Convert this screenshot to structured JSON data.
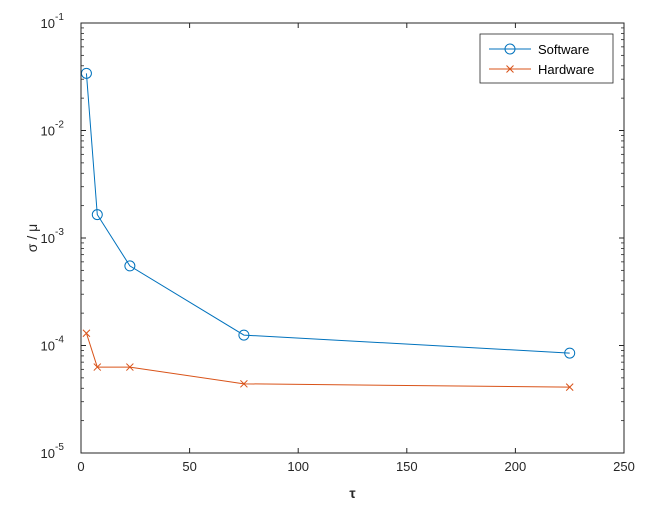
{
  "chart_data": {
    "type": "line",
    "title": "",
    "xlabel": "τ",
    "ylabel": "σ / μ",
    "xlim": [
      0,
      250
    ],
    "ylim": [
      1e-05,
      0.1
    ],
    "yscale": "log",
    "x_ticks": [
      0,
      50,
      100,
      150,
      200,
      250
    ],
    "x_tick_labels": [
      "0",
      "50",
      "100",
      "150",
      "200",
      "250"
    ],
    "y_ticks": [
      1e-05,
      0.0001,
      0.001,
      0.01,
      0.1
    ],
    "y_tick_labels": [
      {
        "base": "10",
        "exp": "-5"
      },
      {
        "base": "10",
        "exp": "-4"
      },
      {
        "base": "10",
        "exp": "-3"
      },
      {
        "base": "10",
        "exp": "-2"
      },
      {
        "base": "10",
        "exp": "-1"
      }
    ],
    "grid": false,
    "legend_position": "top-right",
    "series": [
      {
        "name": "Software",
        "marker": "circle",
        "color": "#0072BD",
        "x": [
          2.5,
          7.5,
          22.5,
          75,
          225
        ],
        "y": [
          0.034,
          0.00165,
          0.00055,
          0.000125,
          8.5e-05
        ]
      },
      {
        "name": "Hardware",
        "marker": "x",
        "color": "#D95319",
        "x": [
          2.5,
          7.5,
          22.5,
          75,
          225
        ],
        "y": [
          0.00013,
          6.3e-05,
          6.3e-05,
          4.4e-05,
          4.1e-05
        ]
      }
    ]
  }
}
